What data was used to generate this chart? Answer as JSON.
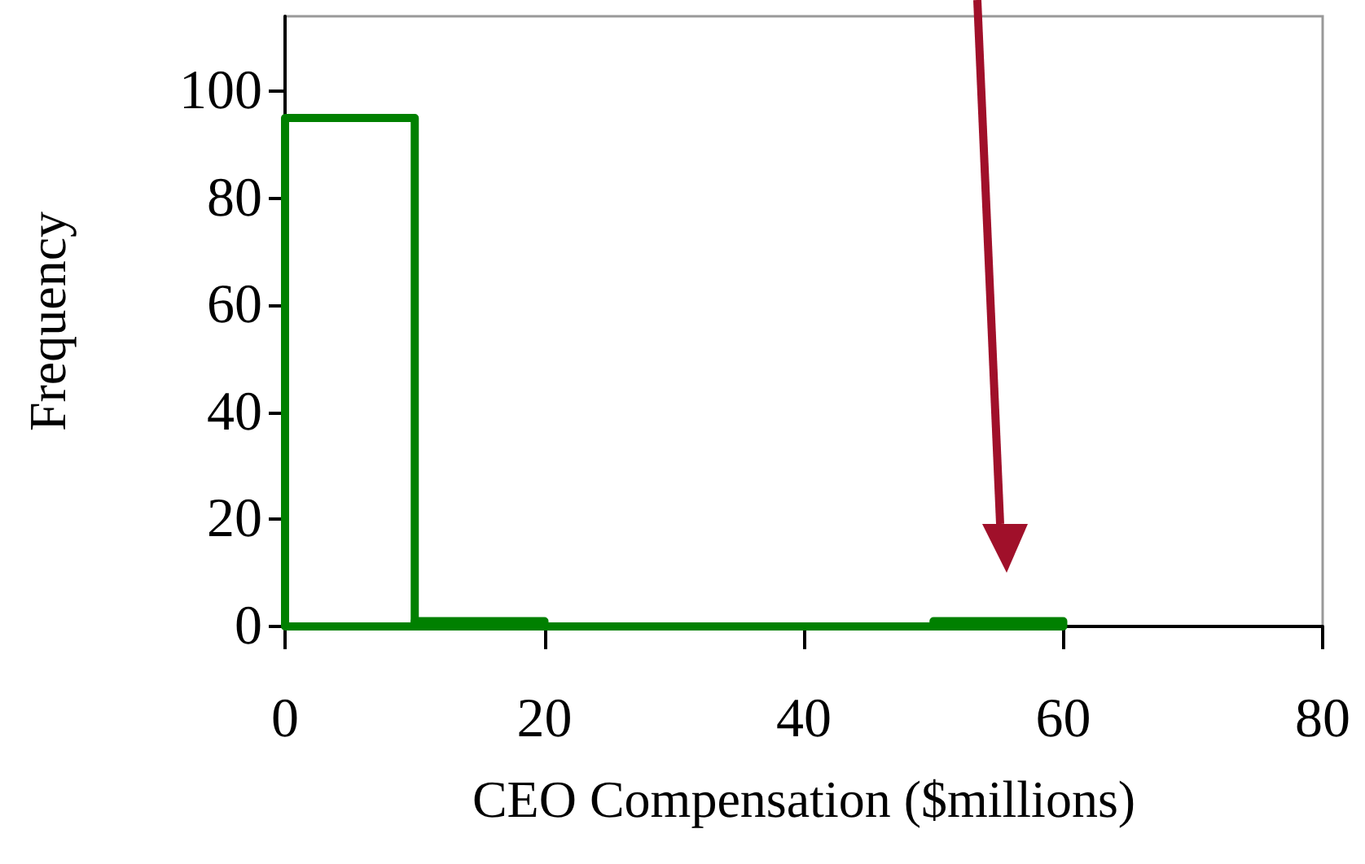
{
  "chart_data": {
    "type": "histogram",
    "xlabel": "CEO Compensation ($millions)",
    "ylabel": "Frequency",
    "bins": [
      0,
      10,
      20,
      30,
      40,
      50,
      60
    ],
    "values": [
      95,
      1,
      0,
      0,
      0,
      1
    ],
    "color": "#008000",
    "xlim": [
      0,
      80
    ],
    "xticks": [
      0,
      20,
      40,
      60,
      80
    ],
    "ylim": [
      0,
      114
    ],
    "yticks": [
      0,
      20,
      40,
      60,
      80,
      100
    ],
    "grid": false
  }
}
